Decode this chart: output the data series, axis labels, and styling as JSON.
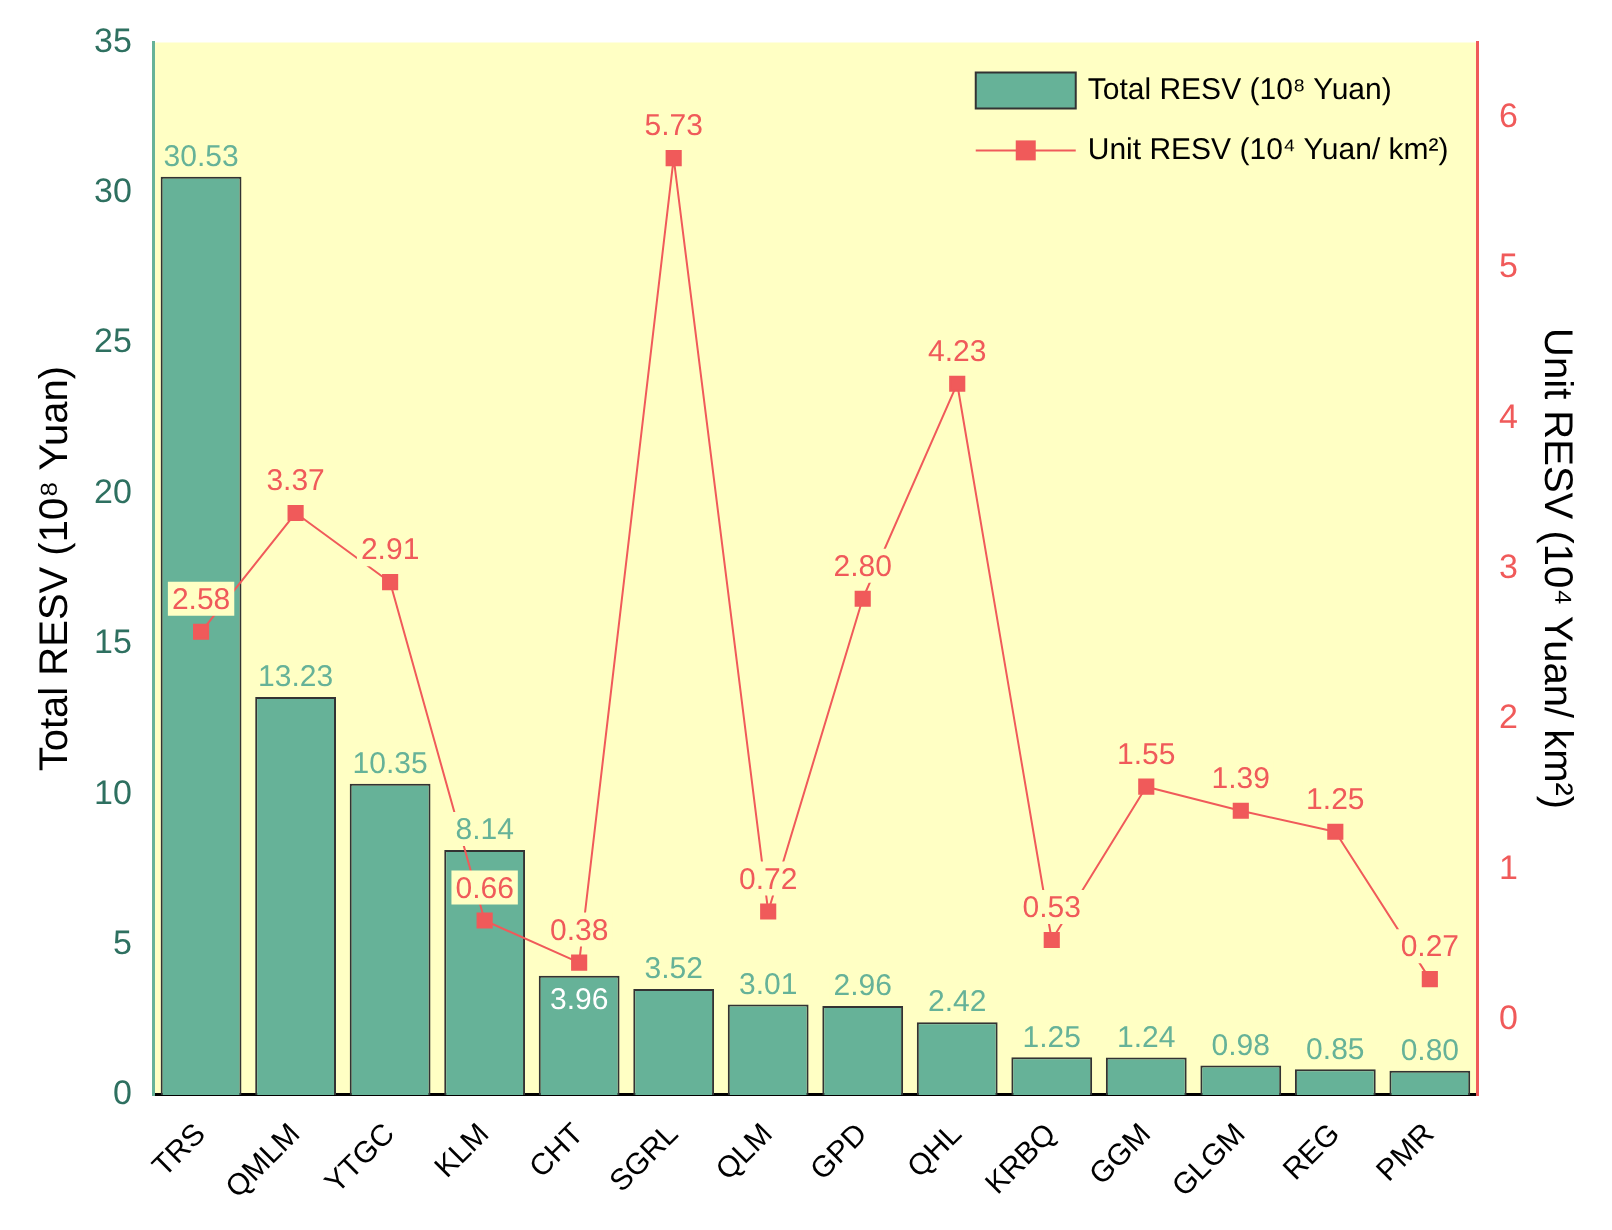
{
  "chart_data": {
    "type": "bar",
    "xlabel": null,
    "ylabel": "Total RESV (10⁸ Yuan)",
    "y2label": "Unit RESV (10⁴ Yuan/ km²)",
    "categories": [
      "TRS",
      "QMLM",
      "YTGC",
      "KLM",
      "CHT",
      "SGRL",
      "QLM",
      "GPD",
      "QHL",
      "KRBQ",
      "GGM",
      "GLGM",
      "REG",
      "PMR"
    ],
    "series": [
      {
        "name": "Total RESV (10⁸ Yuan)",
        "color": "#66b298",
        "values": [
          30.53,
          13.23,
          10.35,
          8.14,
          3.96,
          3.52,
          3.01,
          2.96,
          2.42,
          1.25,
          1.24,
          0.98,
          0.85,
          0.8
        ],
        "value_labels": [
          "30.53",
          "13.23",
          "10.35",
          "8.14",
          "3.96",
          "3.52",
          "3.01",
          "2.96",
          "2.42",
          "1.25",
          "1.24",
          "0.98",
          "0.85",
          "0.80"
        ]
      },
      {
        "name": "Unit RESV (10⁴ Yuan/ km²)",
        "type": "line",
        "axis": "y2",
        "color": "#f05a5a",
        "marker": "square",
        "line_style": "solid",
        "values": [
          2.58,
          3.37,
          2.91,
          0.66,
          0.38,
          5.73,
          0.72,
          2.8,
          4.23,
          0.53,
          1.55,
          1.39,
          1.25,
          0.27
        ],
        "value_labels": [
          "2.58",
          "3.37",
          "2.91",
          "0.66",
          "0.38",
          "5.73",
          "0.72",
          "2.80",
          "4.23",
          "0.53",
          "1.55",
          "1.39",
          "1.25",
          "0.27"
        ]
      }
    ],
    "ylim": [
      0,
      35
    ],
    "yticks": [
      0,
      5,
      10,
      15,
      20,
      25,
      30,
      35
    ],
    "y2lim": [
      -0.5,
      6.5
    ],
    "y2ticks": [
      0,
      1,
      2,
      3,
      4,
      5,
      6
    ],
    "grid": false,
    "legend": "top right"
  }
}
